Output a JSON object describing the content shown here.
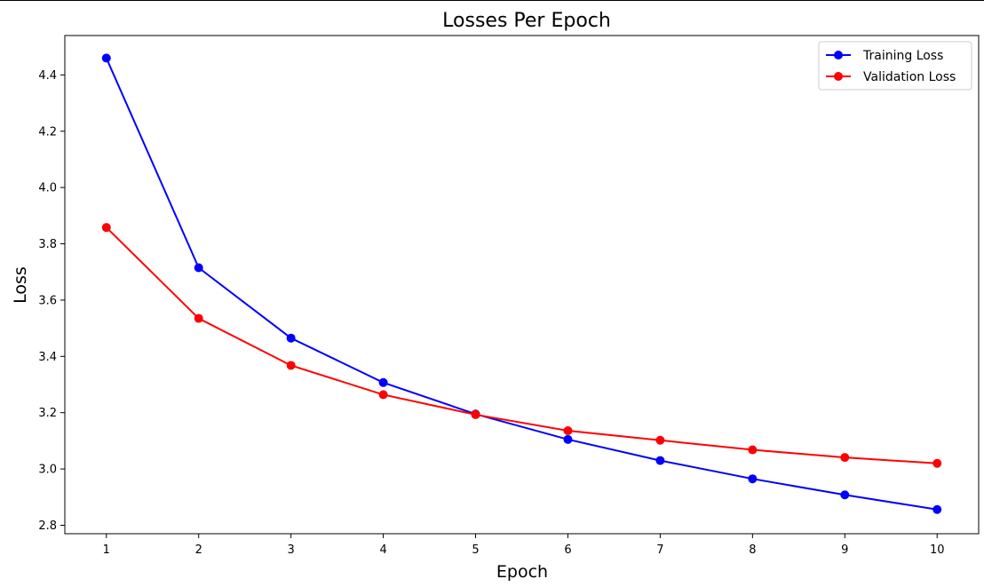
{
  "chart_data": {
    "type": "line",
    "title": "Losses Per Epoch",
    "xlabel": "Epoch",
    "ylabel": "Loss",
    "x": [
      1,
      2,
      3,
      4,
      5,
      6,
      7,
      8,
      9,
      10
    ],
    "xticks": [
      "1",
      "2",
      "3",
      "4",
      "5",
      "6",
      "7",
      "8",
      "9",
      "10"
    ],
    "yticks": [
      "2.8",
      "3.0",
      "3.2",
      "3.4",
      "3.6",
      "3.8",
      "4.0",
      "4.2",
      "4.4"
    ],
    "ytick_values": [
      2.8,
      3.0,
      3.2,
      3.4,
      3.6,
      3.8,
      4.0,
      4.2,
      4.4
    ],
    "xlim": [
      0.55,
      10.45
    ],
    "ylim": [
      2.77,
      4.54
    ],
    "grid": false,
    "legend_position": "top-right",
    "series": [
      {
        "name": "Training Loss",
        "color": "#0000ff",
        "marker": "circle",
        "values": [
          4.46,
          3.715,
          3.465,
          3.307,
          3.195,
          3.105,
          3.03,
          2.965,
          2.908,
          2.856
        ]
      },
      {
        "name": "Validation Loss",
        "color": "#ff0000",
        "marker": "circle",
        "values": [
          3.858,
          3.535,
          3.368,
          3.264,
          3.193,
          3.136,
          3.102,
          3.068,
          3.041,
          3.02
        ]
      }
    ]
  }
}
